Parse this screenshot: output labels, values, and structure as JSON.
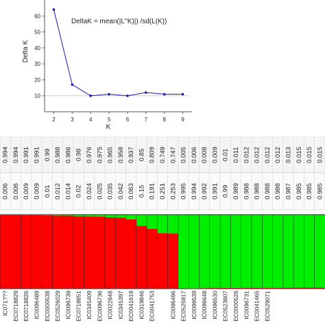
{
  "chart_data": [
    {
      "type": "line",
      "annotation": "DeltaK = mean(|L''K)|) /sd(L(K))",
      "xlabel": "K",
      "ylabel": "Delta K",
      "x": [
        2,
        3,
        4,
        5,
        6,
        7,
        8,
        9
      ],
      "y": [
        64,
        17,
        10,
        11,
        10,
        12,
        11,
        11
      ],
      "ylim": [
        0,
        70
      ],
      "xlim": [
        1.5,
        9.5
      ],
      "yticks": [
        10,
        20,
        30,
        40,
        50,
        60
      ],
      "reference_line": 10,
      "color": "#1a1aa8"
    },
    {
      "type": "bar",
      "stacked": true,
      "colors": [
        "#ff0000",
        "#00ee00"
      ],
      "table_rows": [
        [
          "0.994",
          "0.994",
          "0.991",
          "0.991",
          "0.99",
          "0.988",
          "0.986",
          "0.98",
          "0.976",
          "0.975",
          "0.965",
          "0.958",
          "0.937",
          "0.85",
          "0.809",
          "0.749",
          "0.747",
          "0.005",
          "0.006",
          "0.008",
          "0.009",
          "0.01",
          "0.011",
          "0.012",
          "0.012",
          "0.012",
          "0.012",
          "0.013",
          "0.015",
          "0.015",
          "0.015"
        ],
        [
          "0.006",
          "0.006",
          "0.009",
          "0.009",
          "0.01",
          "0.012",
          "0.014",
          "0.02",
          "0.024",
          "0.025",
          "0.035",
          "0.042",
          "0.063",
          "0.15",
          "0.191",
          "0.251",
          "0.253",
          "0.995",
          "0.994",
          "0.992",
          "0.991",
          "0.99",
          "0.989",
          "0.988",
          "0.988",
          "0.988",
          "0.988",
          "0.987",
          "0.985",
          "0.985",
          "0.985"
        ]
      ],
      "categories": [
        "IC071???",
        "EC0718829",
        "EC0718826",
        "IC0096489",
        "EC0000538",
        "EC0526029",
        "IC0096739",
        "EC0718851",
        "IC0345409",
        "EC0096736",
        "IC0022648",
        "IC0345397",
        "EC0041619",
        "IC0319846",
        "EC0041753",
        "",
        "IC0096496",
        "EC0525917",
        "IC0096539",
        "IC0096648",
        "IC0096530",
        "EC0523807",
        "EC0000526",
        "IC0096731",
        "EC0041465",
        "EC0529071",
        "",
        "",
        "",
        "",
        ""
      ]
    }
  ]
}
